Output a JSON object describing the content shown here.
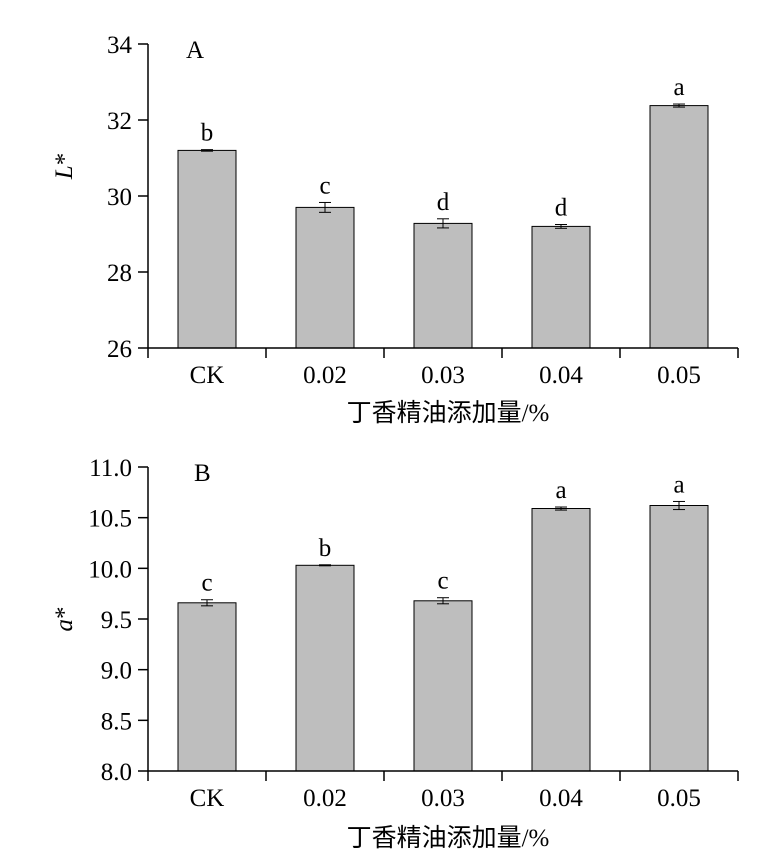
{
  "chart_data": [
    {
      "type": "bar",
      "panel_label": "A",
      "ylabel_main": "L",
      "ylabel_suffix": "*",
      "xlabel": "丁香精油添加量/%",
      "categories": [
        "CK",
        "0.02",
        "0.03",
        "0.04",
        "0.05"
      ],
      "values": [
        31.2,
        29.7,
        29.28,
        29.2,
        32.38
      ],
      "errors": [
        0.02,
        0.13,
        0.12,
        0.05,
        0.04
      ],
      "significance": [
        "b",
        "c",
        "d",
        "d",
        "a"
      ],
      "ylim": [
        26,
        34
      ],
      "yticks": [
        26,
        28,
        30,
        32,
        34
      ],
      "ytick_labels": [
        "26",
        "28",
        "30",
        "32",
        "34"
      ],
      "grid": false,
      "bar_color": "#bebebe"
    },
    {
      "type": "bar",
      "panel_label": "B",
      "ylabel_main": "a",
      "ylabel_suffix": "*",
      "xlabel": "丁香精油添加量/%",
      "categories": [
        "CK",
        "0.02",
        "0.03",
        "0.04",
        "0.05"
      ],
      "values": [
        9.66,
        10.03,
        9.68,
        10.59,
        10.62
      ],
      "errors": [
        0.03,
        0.005,
        0.03,
        0.015,
        0.04
      ],
      "significance": [
        "c",
        "b",
        "c",
        "a",
        "a"
      ],
      "ylim": [
        8.0,
        11.0
      ],
      "yticks": [
        8.0,
        8.5,
        9.0,
        9.5,
        10.0,
        10.5,
        11.0
      ],
      "ytick_labels": [
        "8.0",
        "8.5",
        "9.0",
        "9.5",
        "10.0",
        "10.5",
        "11.0"
      ],
      "grid": false,
      "bar_color": "#bebebe"
    }
  ]
}
